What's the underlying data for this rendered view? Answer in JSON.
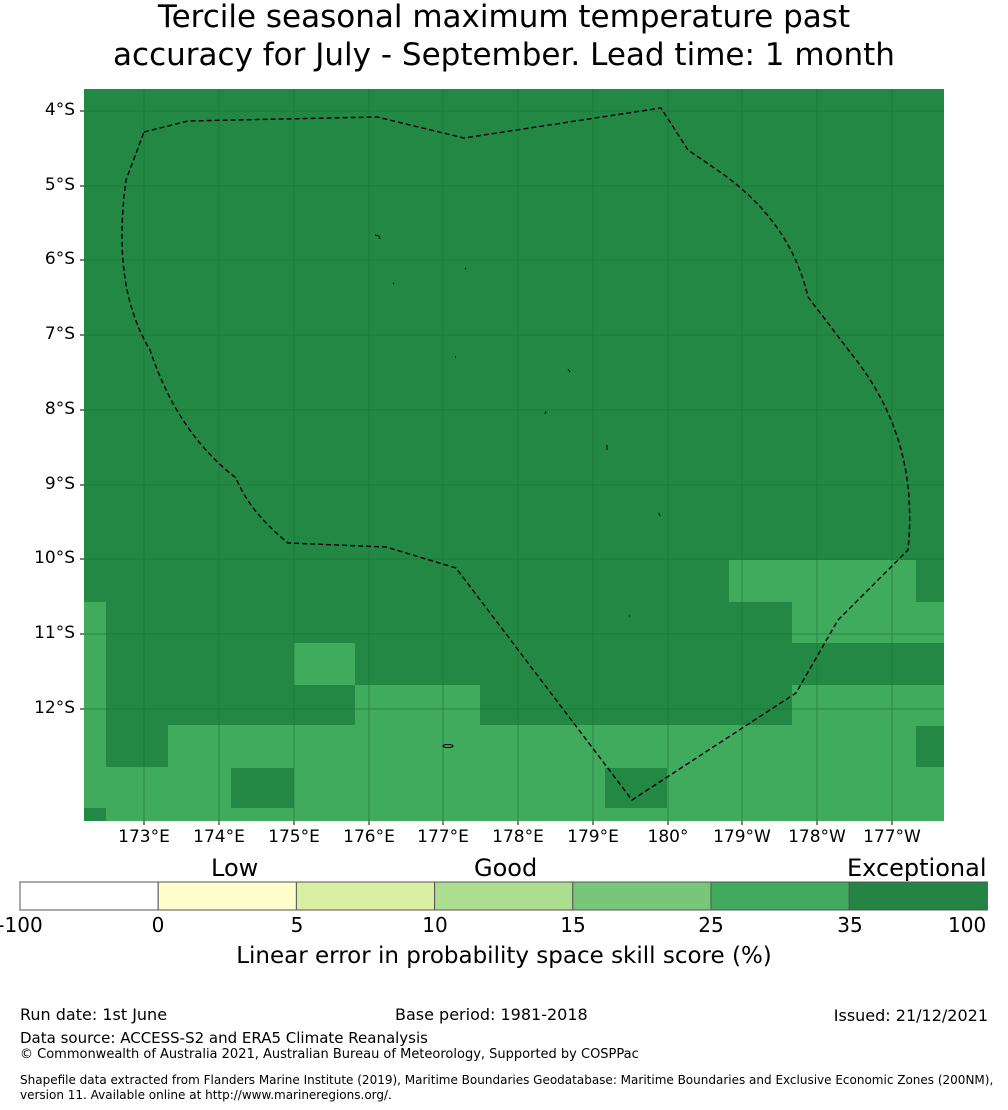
{
  "title": {
    "line1": "Tercile seasonal maximum temperature past",
    "line2": "accuracy for July - September. Lead time: 1 month"
  },
  "map": {
    "lat_labels": [
      "4°S",
      "5°S",
      "6°S",
      "7°S",
      "8°S",
      "9°S",
      "10°S",
      "11°S",
      "12°S"
    ],
    "lon_labels": [
      "173°E",
      "174°E",
      "175°E",
      "176°E",
      "177°E",
      "178°E",
      "179°E",
      "180°",
      "179°W",
      "178°W",
      "177°W"
    ],
    "colors": {
      "exceptional": "#238843",
      "very_good": "#40aa5d",
      "boundary": "#000000"
    }
  },
  "colorbar": {
    "categories": [
      "Low",
      "Good",
      "Exceptional"
    ],
    "ticks": [
      "-100",
      "0",
      "5",
      "10",
      "15",
      "25",
      "35",
      "100"
    ],
    "colors": [
      "#ffffff",
      "#ffffcc",
      "#d9f0a3",
      "#addd8e",
      "#78c679",
      "#41ab5d",
      "#238443"
    ],
    "label": "Linear error in probability space skill score (%)"
  },
  "footer": {
    "run_date": "Run date: 1st June",
    "base_period": "Base period: 1981-2018",
    "issued": "Issued: 21/12/2021",
    "data_source": "Data source: ACCESS-S2 and ERA5 Climate Reanalysis",
    "copyright": "© Commonwealth of Australia 2021, Australian Bureau of Meteorology, Supported by COSPPac",
    "shapefile_line1": "Shapefile data extracted from Flanders Marine Institute (2019), Maritime Boundaries Geodatabase: Maritime Boundaries and Exclusive Economic Zones (200NM),",
    "shapefile_line2": "version 11. Available online at http://www.marineregions.org/."
  }
}
